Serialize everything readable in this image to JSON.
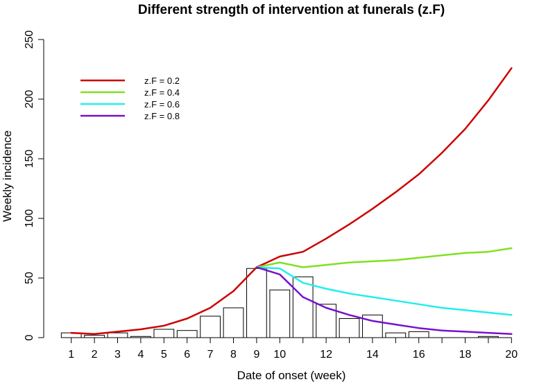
{
  "chart_data": {
    "type": "line",
    "title": "Different strength of intervention at funerals (z.F)",
    "xlabel": "Date of onset (week)",
    "ylabel": "Weekly incidence",
    "xlim": [
      0.5,
      20.5
    ],
    "ylim": [
      0,
      250
    ],
    "x_ticks": [
      1,
      2,
      3,
      4,
      5,
      6,
      7,
      8,
      9,
      10,
      11,
      12,
      13,
      14,
      15,
      16,
      17,
      18,
      19,
      20
    ],
    "x_tick_labels": [
      "1",
      "2",
      "3",
      "4",
      "5",
      "6",
      "7",
      "8",
      "9",
      "10",
      "",
      "12",
      "",
      "14",
      "",
      "16",
      "",
      "18",
      "",
      "20"
    ],
    "y_ticks": [
      0,
      50,
      100,
      150,
      200,
      250
    ],
    "y_tick_labels": [
      "0",
      "50",
      "100",
      "150",
      "200",
      "250"
    ],
    "legend_position": "top-left",
    "grid": false,
    "bars": {
      "x": [
        1,
        2,
        3,
        4,
        5,
        6,
        7,
        8,
        9,
        10,
        11,
        12,
        13,
        14,
        15,
        16,
        17,
        18,
        19,
        20
      ],
      "values": [
        4,
        2,
        4,
        1,
        7,
        6,
        18,
        25,
        58,
        40,
        51,
        28,
        16,
        19,
        4,
        5,
        0,
        0,
        1,
        0
      ]
    },
    "series": [
      {
        "name": "z.F = 0.2",
        "color": "#cc0000",
        "x": [
          1,
          2,
          3,
          4,
          5,
          6,
          7,
          8,
          9,
          10,
          11,
          12,
          13,
          14,
          15,
          16,
          17,
          18,
          19,
          20
        ],
        "values": [
          4,
          3,
          5,
          7,
          10,
          16,
          25,
          39,
          59,
          68,
          72,
          83,
          95,
          108,
          122,
          137,
          155,
          175,
          199,
          226
        ]
      },
      {
        "name": "z.F = 0.4",
        "color": "#80e020",
        "x": [
          9,
          10,
          11,
          12,
          13,
          14,
          15,
          16,
          17,
          18,
          19,
          20
        ],
        "values": [
          59,
          63,
          59,
          61,
          63,
          64,
          65,
          67,
          69,
          71,
          72,
          75
        ]
      },
      {
        "name": "z.F = 0.6",
        "color": "#22eeee",
        "x": [
          9,
          10,
          11,
          12,
          13,
          14,
          15,
          16,
          17,
          18,
          19,
          20
        ],
        "values": [
          59,
          58,
          46,
          41,
          37,
          34,
          31,
          28,
          25,
          23,
          21,
          19
        ]
      },
      {
        "name": "z.F = 0.8",
        "color": "#7711cc",
        "x": [
          9,
          10,
          11,
          12,
          13,
          14,
          15,
          16,
          17,
          18,
          19,
          20
        ],
        "values": [
          59,
          53,
          34,
          25,
          19,
          14,
          11,
          8,
          6,
          5,
          4,
          3
        ]
      }
    ]
  }
}
